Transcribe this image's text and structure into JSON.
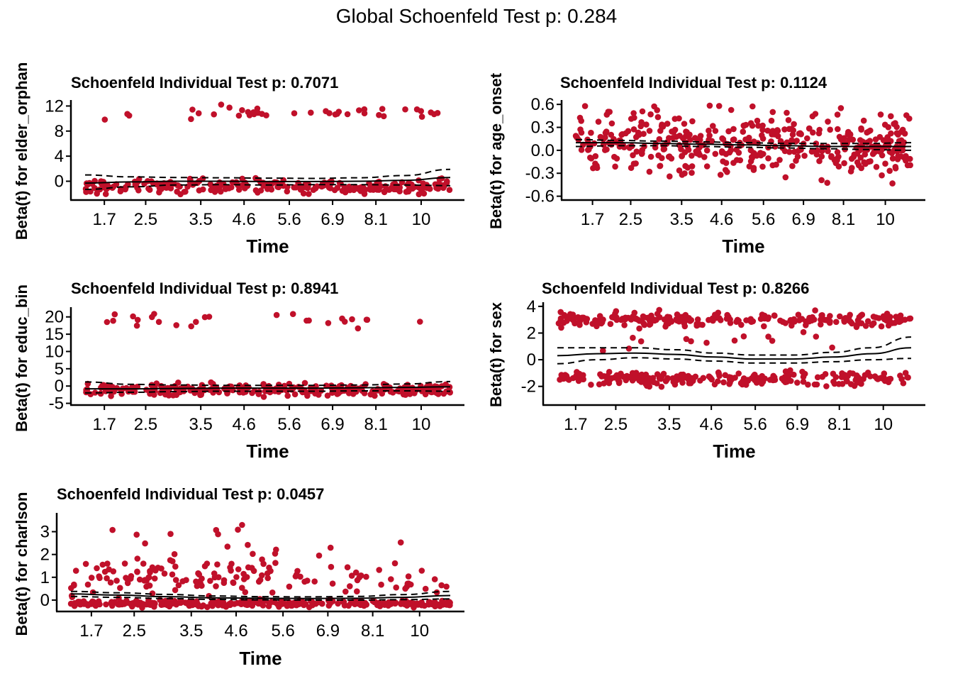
{
  "global_title": "Global Schoenfeld Test p: 0.284",
  "x_tick_labels": [
    "1.7",
    "2.5",
    "3.5",
    "4.6",
    "5.6",
    "6.9",
    "8.1",
    "10"
  ],
  "colors": {
    "points": "#C0102A",
    "lines": "#000000"
  },
  "chart_data": [
    {
      "type": "scatter",
      "title": "Schoenfeld Individual Test p: 0.7071",
      "xlabel": "Time",
      "ylabel": "Beta(t) for elder_orphan",
      "yticks": [
        0,
        4,
        8,
        12
      ],
      "ylim": [
        -3,
        12.5
      ],
      "grid": false,
      "clusters": [
        {
          "y_center": -0.8,
          "spread": 0.55,
          "count": 260,
          "t_range": [
            0,
            1
          ]
        },
        {
          "y_center": 10.9,
          "spread": 0.5,
          "count": 40,
          "t_range": [
            0.05,
            0.97
          ]
        }
      ],
      "fit": [
        -0.3,
        -0.1,
        0.0,
        0.0,
        -0.05,
        -0.05,
        0.0,
        0.15,
        0.6
      ],
      "band_upper": [
        1.0,
        0.7,
        0.6,
        0.55,
        0.5,
        0.45,
        0.55,
        0.9,
        1.9
      ],
      "band_lower": [
        -1.3,
        -0.9,
        -0.6,
        -0.55,
        -0.6,
        -0.55,
        -0.55,
        -0.6,
        -0.7
      ]
    },
    {
      "type": "scatter",
      "title": "Schoenfeld Individual Test p: 0.1124",
      "xlabel": "Time",
      "ylabel": "Beta(t) for age_onset",
      "yticks": [
        -0.6,
        -0.3,
        0.0,
        0.3,
        0.6
      ],
      "ylim": [
        -0.65,
        0.62
      ],
      "grid": false,
      "clusters": [
        {
          "y_center": 0.08,
          "spread": 0.2,
          "count": 430,
          "t_range": [
            0,
            1
          ]
        }
      ],
      "fit": [
        0.1,
        0.1,
        0.09,
        0.08,
        0.07,
        0.06,
        0.05,
        0.05,
        0.05
      ],
      "band_upper": [
        0.14,
        0.13,
        0.12,
        0.11,
        0.1,
        0.09,
        0.09,
        0.09,
        0.1
      ],
      "band_lower": [
        0.05,
        0.06,
        0.06,
        0.05,
        0.04,
        0.03,
        0.02,
        0.01,
        0.0
      ]
    },
    {
      "type": "scatter",
      "title": "Schoenfeld Individual Test p: 0.8941",
      "xlabel": "Time",
      "ylabel": "Beta(t) for educ_bin",
      "yticks": [
        -5,
        0,
        5,
        10,
        15,
        20
      ],
      "ylim": [
        -5.5,
        22
      ],
      "grid": false,
      "clusters": [
        {
          "y_center": -1.0,
          "spread": 0.9,
          "count": 270,
          "t_range": [
            0,
            1
          ]
        },
        {
          "y_center": 19.0,
          "spread": 1.1,
          "count": 26,
          "t_range": [
            0.05,
            0.97
          ]
        }
      ],
      "fit": [
        -0.8,
        -0.8,
        -0.7,
        -0.6,
        -0.6,
        -0.6,
        -0.5,
        -0.4,
        -0.2
      ],
      "band_upper": [
        1.2,
        0.5,
        0.3,
        0.2,
        0.2,
        0.2,
        0.3,
        0.6,
        1.3
      ],
      "band_lower": [
        -2.0,
        -1.8,
        -1.6,
        -1.5,
        -1.5,
        -1.5,
        -1.4,
        -1.4,
        -1.5
      ]
    },
    {
      "type": "scatter",
      "title": "Schoenfeld Individual Test p: 0.8266",
      "xlabel": "Time",
      "ylabel": "Beta(t) for sex",
      "yticks": [
        -2,
        0,
        2,
        4
      ],
      "ylim": [
        -3.4,
        4.1
      ],
      "grid": false,
      "clusters": [
        {
          "y_center": 3.0,
          "spread": 0.25,
          "count": 230,
          "t_range": [
            0,
            1
          ]
        },
        {
          "y_center": -1.4,
          "spread": 0.25,
          "count": 230,
          "t_range": [
            0,
            1
          ]
        },
        {
          "y_center": 1.2,
          "spread": 0.35,
          "count": 14,
          "t_range": [
            0.1,
            0.8
          ]
        }
      ],
      "fit": [
        0.3,
        0.45,
        0.5,
        0.4,
        0.2,
        0.05,
        0.05,
        0.2,
        0.45,
        0.9
      ],
      "band_upper": [
        0.9,
        0.9,
        0.9,
        0.75,
        0.5,
        0.35,
        0.35,
        0.55,
        0.9,
        1.7
      ],
      "band_lower": [
        -0.3,
        0.0,
        0.15,
        0.05,
        -0.1,
        -0.25,
        -0.25,
        -0.15,
        0.0,
        0.1
      ]
    },
    {
      "type": "scatter",
      "title": "Schoenfeld Individual Test p: 0.0457",
      "xlabel": "Time",
      "ylabel": "Beta(t) for charlson",
      "yticks": [
        0,
        1,
        2,
        3
      ],
      "ylim": [
        -0.5,
        3.7
      ],
      "grid": false,
      "clusters": [
        {
          "y_center": -0.15,
          "spread": 0.07,
          "count": 300,
          "t_range": [
            0,
            1
          ]
        },
        {
          "y_center": 1.0,
          "spread": 0.45,
          "count": 110,
          "t_range": [
            0,
            0.55
          ]
        },
        {
          "y_center": 0.9,
          "spread": 0.35,
          "count": 35,
          "t_range": [
            0.55,
            1
          ]
        },
        {
          "y_center": 2.4,
          "spread": 0.5,
          "count": 18,
          "t_range": [
            0.0,
            0.9
          ]
        }
      ],
      "fit": [
        0.27,
        0.22,
        0.15,
        0.1,
        0.08,
        0.07,
        0.08,
        0.12,
        0.2
      ],
      "band_upper": [
        0.38,
        0.32,
        0.25,
        0.18,
        0.15,
        0.14,
        0.16,
        0.24,
        0.38
      ],
      "band_lower": [
        0.16,
        0.12,
        0.07,
        0.03,
        0.01,
        0.0,
        0.0,
        0.02,
        0.05
      ]
    }
  ]
}
